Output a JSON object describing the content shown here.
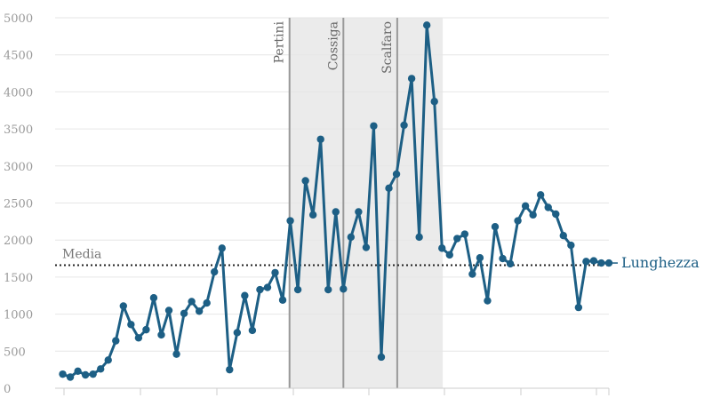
{
  "chart_data": {
    "type": "line",
    "title": "",
    "xlabel": "",
    "ylabel": "",
    "ylim": [
      0,
      5000
    ],
    "yticks": [
      0,
      500,
      1000,
      1500,
      2000,
      2500,
      3000,
      3500,
      4000,
      4500,
      5000
    ],
    "xlim": [
      0,
      73
    ],
    "grid": true,
    "legend": "none",
    "series": [
      {
        "name": "Lunghezza",
        "color": "#1d5f85",
        "x": [
          1,
          2,
          3,
          4,
          5,
          6,
          7,
          8,
          9,
          10,
          11,
          12,
          13,
          14,
          15,
          16,
          17,
          18,
          19,
          20,
          21,
          22,
          23,
          24,
          25,
          26,
          27,
          28,
          29,
          30,
          31,
          32,
          33,
          34,
          35,
          36,
          37,
          38,
          39,
          40,
          41,
          42,
          43,
          44,
          45,
          46,
          47,
          48,
          49,
          50,
          51,
          52,
          53,
          54,
          55,
          56,
          57,
          58,
          59,
          60,
          61,
          62,
          63,
          64,
          65,
          66,
          67,
          68,
          69,
          70,
          71,
          72,
          73
        ],
        "values": [
          190,
          150,
          230,
          180,
          190,
          260,
          380,
          640,
          1110,
          860,
          680,
          790,
          1220,
          720,
          1050,
          460,
          1010,
          1170,
          1040,
          1150,
          1570,
          1890,
          250,
          750,
          1250,
          780,
          1330,
          1360,
          1560,
          1190,
          2260,
          1330,
          2800,
          2340,
          3360,
          1330,
          2380,
          1340,
          2040,
          2380,
          1900,
          3540,
          420,
          2700,
          2890,
          3550,
          4180,
          2040,
          4900,
          3870,
          1890,
          1800,
          2020,
          2080,
          1540,
          1760,
          1180,
          2180,
          1750,
          1680,
          2260,
          2460,
          2340,
          2610,
          2440,
          2350,
          2060,
          1930,
          1090,
          1710,
          1720,
          1690,
          1690
        ]
      }
    ],
    "reference_line": {
      "label": "Media",
      "value": 1660,
      "style": "dotted"
    },
    "periods": [
      {
        "label": "Pertini",
        "start": 30.9,
        "end": 38.0
      },
      {
        "label": "Cossiga",
        "start": 38.0,
        "end": 45.1
      },
      {
        "label": "Scalfaro",
        "start": 45.1,
        "end": 51.1
      }
    ],
    "shade_color": "#ebebeb",
    "period_line_color": "#999999"
  }
}
